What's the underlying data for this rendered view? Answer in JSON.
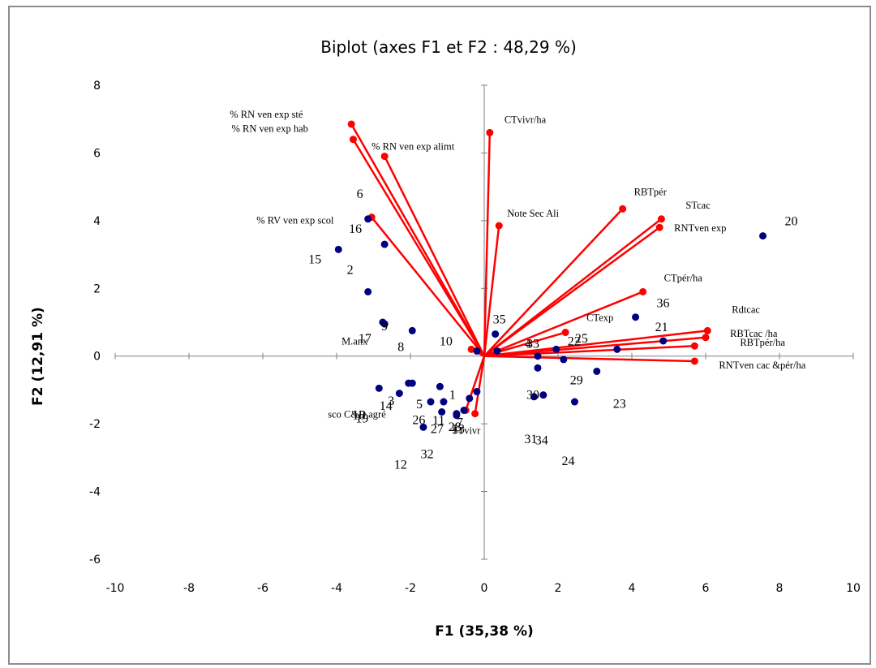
{
  "chart_data": {
    "type": "scatter",
    "title": "Biplot (axes F1 et F2 : 48,29 %)",
    "xlabel": "F1 (35,38 %)",
    "ylabel": "F2 (12,91 %)",
    "xlim": [
      -10,
      10
    ],
    "ylim": [
      -6,
      8
    ],
    "x_ticks": [
      -10,
      -8,
      -6,
      -4,
      -2,
      0,
      2,
      4,
      6,
      8,
      10
    ],
    "y_ticks": [
      -6,
      -4,
      -2,
      0,
      2,
      4,
      6,
      8
    ],
    "grid": false,
    "colors": {
      "variables": "#ff0000",
      "observations": "#000080",
      "axes": "#808080"
    },
    "variables": [
      {
        "label": "% RN ven exp sté",
        "x": -3.6,
        "y": 6.85
      },
      {
        "label": "% RN ven exp hab",
        "x": -3.55,
        "y": 6.4
      },
      {
        "label": "% RN ven exp alimt",
        "x": -2.7,
        "y": 5.9
      },
      {
        "label": "% RV ven exp scol",
        "x": -3.05,
        "y": 4.1
      },
      {
        "label": "CTvivr/ha",
        "x": 0.15,
        "y": 6.6
      },
      {
        "label": "Note Sec Ali",
        "x": 0.4,
        "y": 3.85
      },
      {
        "label": "RBTpér",
        "x": 3.75,
        "y": 4.35
      },
      {
        "label": "STcac",
        "x": 4.8,
        "y": 4.05
      },
      {
        "label": "RNTven exp",
        "x": 4.75,
        "y": 3.8
      },
      {
        "label": "CTpér/ha",
        "x": 4.3,
        "y": 1.9
      },
      {
        "label": "CTexp",
        "x": 2.2,
        "y": 0.7
      },
      {
        "label": "Rdtcac",
        "x": 6.05,
        "y": 0.75
      },
      {
        "label": "RBTcac /ha",
        "x": 6.0,
        "y": 0.55
      },
      {
        "label": "RBTpér/ha",
        "x": 5.7,
        "y": 0.3
      },
      {
        "label": "RNTven cac &pér/ha",
        "x": 5.7,
        "y": -0.15
      },
      {
        "label": "M.anx",
        "x": -0.35,
        "y": 0.2
      },
      {
        "label": "sco C&D agré",
        "x": -0.5,
        "y": -1.6
      },
      {
        "label": "STvivr",
        "x": -0.25,
        "y": -1.7
      }
    ],
    "observations": [
      {
        "label": "1",
        "x": -0.2,
        "y": -1.05
      },
      {
        "label": "2",
        "x": -3.15,
        "y": 1.9
      },
      {
        "label": "3",
        "x": -1.95,
        "y": -0.8
      },
      {
        "label": "4",
        "x": 0.35,
        "y": 0.15
      },
      {
        "label": "5",
        "x": -1.45,
        "y": -1.35
      },
      {
        "label": "6",
        "x": -3.15,
        "y": 4.05
      },
      {
        "label": "7",
        "x": -0.55,
        "y": -1.6
      },
      {
        "label": "8",
        "x": -1.95,
        "y": 0.75
      },
      {
        "label": "9",
        "x": -2.7,
        "y": 0.95
      },
      {
        "label": "10",
        "x": -0.2,
        "y": 0.15
      },
      {
        "label": "11",
        "x": -1.1,
        "y": -1.35
      },
      {
        "label": "12",
        "x": -1.65,
        "y": -2.1
      },
      {
        "label": "13",
        "x": -0.75,
        "y": -1.75
      },
      {
        "label": "14",
        "x": -2.05,
        "y": -0.8
      },
      {
        "label": "15",
        "x": -3.95,
        "y": 3.15
      },
      {
        "label": "16",
        "x": -2.7,
        "y": 3.3
      },
      {
        "label": "17",
        "x": -2.75,
        "y": 1.0
      },
      {
        "label": "18",
        "x": -2.85,
        "y": -0.95
      },
      {
        "label": "19",
        "x": -2.3,
        "y": -1.1
      },
      {
        "label": "20",
        "x": 7.55,
        "y": 3.55
      },
      {
        "label": "21",
        "x": 4.85,
        "y": 0.45
      },
      {
        "label": "22",
        "x": 3.6,
        "y": 0.2
      },
      {
        "label": "23",
        "x": 3.05,
        "y": -0.45
      },
      {
        "label": "24",
        "x": 2.45,
        "y": -1.35
      },
      {
        "label": "25",
        "x": 2.15,
        "y": -0.1
      },
      {
        "label": "26",
        "x": -1.2,
        "y": -0.9
      },
      {
        "label": "27",
        "x": -0.75,
        "y": -1.7
      },
      {
        "label": "28",
        "x": -0.4,
        "y": -1.25
      },
      {
        "label": "29",
        "x": 1.95,
        "y": 0.2
      },
      {
        "label": "30",
        "x": 1.45,
        "y": -0.35
      },
      {
        "label": "31",
        "x": 1.35,
        "y": -1.2
      },
      {
        "label": "32",
        "x": -1.15,
        "y": -1.65
      },
      {
        "label": "33",
        "x": 1.45,
        "y": 0.0
      },
      {
        "label": "34",
        "x": 1.6,
        "y": -1.15
      },
      {
        "label": "35",
        "x": 0.3,
        "y": 0.65
      },
      {
        "label": "36",
        "x": 4.1,
        "y": 1.15
      }
    ]
  }
}
